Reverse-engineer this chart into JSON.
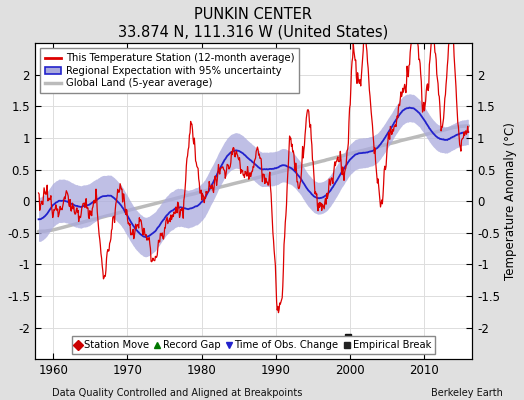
{
  "title": "PUNKIN CENTER",
  "subtitle": "33.874 N, 111.316 W (United States)",
  "ylabel": "Temperature Anomaly (°C)",
  "xlabel_bottom": "Data Quality Controlled and Aligned at Breakpoints",
  "xlabel_right": "Berkeley Earth",
  "ylim": [
    -2.5,
    2.5
  ],
  "xlim": [
    1957.5,
    2016.5
  ],
  "yticks": [
    -2,
    -1.5,
    -1,
    -0.5,
    0,
    0.5,
    1,
    1.5,
    2
  ],
  "xticks": [
    1960,
    1970,
    1980,
    1990,
    2000,
    2010
  ],
  "fig_bg_color": "#e0e0e0",
  "plot_bg_color": "#ffffff",
  "station_color": "#dd0000",
  "regional_color": "#2222cc",
  "regional_fill_color": "#aaaadd",
  "global_color": "#bbbbbb",
  "legend_labels": [
    "This Temperature Station (12-month average)",
    "Regional Expectation with 95% uncertainty",
    "Global Land (5-year average)"
  ],
  "marker_legend": [
    {
      "marker": "D",
      "color": "#cc0000",
      "label": "Station Move"
    },
    {
      "marker": "^",
      "color": "#007700",
      "label": "Record Gap"
    },
    {
      "marker": "v",
      "color": "#2222cc",
      "label": "Time of Obs. Change"
    },
    {
      "marker": "s",
      "color": "#222222",
      "label": "Empirical Break"
    }
  ],
  "empirical_break_x": 1999.8,
  "empirical_break_y": -2.15
}
